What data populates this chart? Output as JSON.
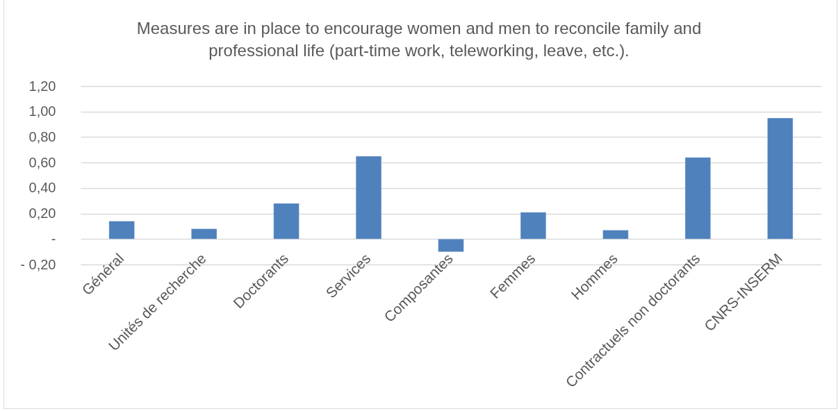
{
  "chart_data": {
    "type": "bar",
    "title": "Measures are in place to encourage women and men to reconcile family and professional life (part-time work, teleworking, leave, etc.).",
    "categories": [
      "Général",
      "Unités de recherche",
      "Doctorants",
      "Services",
      "Composantes",
      "Femmes",
      "Hommes",
      "Contractuels non doctorants",
      "CNRS-INSERM"
    ],
    "values": [
      0.14,
      0.08,
      0.28,
      0.65,
      -0.1,
      0.21,
      0.07,
      0.64,
      0.95
    ],
    "color": "#4f81bd",
    "ylim": [
      -0.2,
      1.2
    ],
    "yticks": [
      {
        "value": -0.2,
        "label": "- 0,20"
      },
      {
        "value": 0,
        "label": "-"
      },
      {
        "value": 0.2,
        "label": "0,20"
      },
      {
        "value": 0.4,
        "label": "0,40"
      },
      {
        "value": 0.6,
        "label": "0,60"
      },
      {
        "value": 0.8,
        "label": "0,80"
      },
      {
        "value": 1.0,
        "label": "1,00"
      },
      {
        "value": 1.2,
        "label": "1,20"
      }
    ],
    "grid": "y"
  }
}
